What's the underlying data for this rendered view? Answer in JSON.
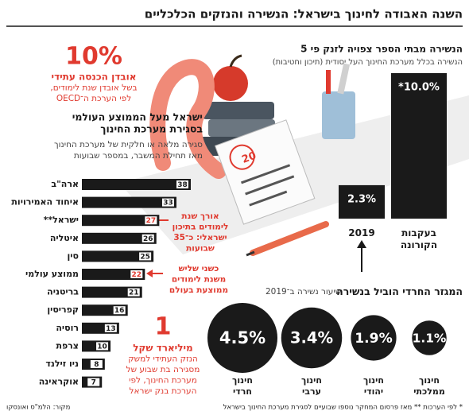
{
  "title": "השנה האבודה לחינוך בישראל: הנשירה והנזקים הכלכליים",
  "chart_data": [
    {
      "type": "hbar",
      "title": [
        "ישראל מעל הממוצע העולמי",
        "בסגירת מערכת החינוך"
      ],
      "subtitle": [
        "סגירה מלאה או חלקית של מערכת החינוך",
        "מאז תחילת המשבר, במספר שבועות"
      ],
      "categories": [
        "ארה\"ב",
        "איחוד האמירויות",
        "ישראל**",
        "איטליה",
        "סין",
        "ממוצע עולמי",
        "בריטניה",
        "קפריסין",
        "רוסיה",
        "צרפת",
        "ניו זילנד",
        "אוקראינה"
      ],
      "values": [
        38,
        33,
        27,
        26,
        25,
        22,
        21,
        16,
        13,
        10,
        8,
        7
      ],
      "color": "#1a1a1a",
      "value_label_colors": [
        "#1a1a1a",
        "#1a1a1a",
        "#e03a2f",
        "#1a1a1a",
        "#1a1a1a",
        "#e03a2f",
        "#1a1a1a",
        "#1a1a1a",
        "#1a1a1a",
        "#1a1a1a",
        "#1a1a1a",
        "#1a1a1a"
      ]
    },
    {
      "type": "bar",
      "title": "הנשירה מבתי הספר צפויה לזנק פי 5",
      "subtitle": "הנשירה בכלל מערכת החינוך העל יסודית (תיכון וחטיבות)",
      "categories": [
        "2019",
        "בעקבות הקורונה"
      ],
      "values": [
        2.3,
        10.0
      ],
      "value_labels": [
        "2.3%",
        "*10.0%"
      ],
      "color": "#1a1a1a"
    },
    {
      "type": "circles",
      "title": "המגזר החרדי הוביל בנשירה",
      "subtitle": "שיעור נשירה ב־2019",
      "categories": [
        "חינוך חרדי",
        "חינוך ערבי",
        "חינוך יהודי",
        "חינוך ממלכתי"
      ],
      "values": [
        4.5,
        3.4,
        1.9,
        1.1
      ],
      "value_labels": [
        "4.5%",
        "3.4%",
        "1.9%",
        "1.1%"
      ],
      "color": "#1a1a1a"
    }
  ],
  "annotations": [
    {
      "big": "10%",
      "lines": [
        "אובדן הכנסה עתידי",
        "בשל אובדן שנת לימודים,",
        "לפי הערכת ה־OECD"
      ]
    },
    {
      "lines": [
        "אורך שנת",
        "לימודים בתיכון",
        "ישראלי: כ־35",
        "שבועות"
      ]
    },
    {
      "lines": [
        "כשני שליש",
        "משנת לימודים",
        "ממוצעת בעולם"
      ]
    },
    {
      "big": "1",
      "lines": [
        "מיליארד שקל",
        "הנזק העתידי למשק",
        "מסגירה בת שבוע של",
        "מערכת החינוך, לפי",
        "הערכת בנק ישראל"
      ]
    }
  ],
  "illustration": {
    "grade": 20
  },
  "footer": {
    "note": "* לפי הערכות   ** מאז פרסום המחקר נוספו שבועיים לסגירת מערכת החינוך בישראל",
    "source": "מקור: הלמ\"ס ואונסקו"
  }
}
